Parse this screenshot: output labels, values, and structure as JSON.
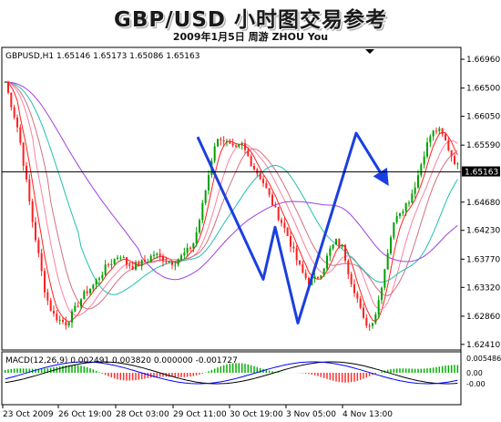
{
  "title": "GBP/USD 小时图交易参考",
  "subtitle": "2009年1月5日   周游 ZHOU You",
  "chart_data": {
    "type": "candlestick",
    "symbol_line": "GBPUSD,H1  1.65146 1.65173 1.65086 1.65163",
    "current_price": 1.65163,
    "current_price_label": "1.65163",
    "y_ticks": [
      1.6696,
      1.665,
      1.6605,
      1.6559,
      1.6468,
      1.6423,
      1.6377,
      1.6332,
      1.6286,
      1.6241
    ],
    "y_tick_labels": [
      "1.66960",
      "1.66500",
      "1.66050",
      "1.65590",
      "1.64680",
      "1.64230",
      "1.63770",
      "1.63320",
      "1.62860",
      "1.62410"
    ],
    "ylim": [
      1.6235,
      1.6712
    ],
    "x_labels": [
      "23 Oct 2009",
      "26 Oct 19:00",
      "28 Oct 03:00",
      "29 Oct 11:00",
      "30 Oct 19:00",
      "3 Nov 05:00",
      "4 Nov 13:00"
    ],
    "price_path": [
      1.666,
      1.662,
      1.658,
      1.651,
      1.644,
      1.638,
      1.632,
      1.629,
      1.628,
      1.6275,
      1.629,
      1.631,
      1.6325,
      1.6335,
      1.635,
      1.6365,
      1.6375,
      1.6385,
      1.637,
      1.6365,
      1.637,
      1.6375,
      1.6385,
      1.638,
      1.6375,
      1.6372,
      1.638,
      1.639,
      1.6405,
      1.645,
      1.6505,
      1.656,
      1.6572,
      1.656,
      1.655,
      1.656,
      1.654,
      1.652,
      1.6505,
      1.648,
      1.6455,
      1.6435,
      1.641,
      1.638,
      1.6355,
      1.634,
      1.6345,
      1.636,
      1.639,
      1.6405,
      1.6395,
      1.635,
      1.632,
      1.628,
      1.627,
      1.6295,
      1.635,
      1.641,
      1.645,
      1.646,
      1.6475,
      1.6505,
      1.6545,
      1.6575,
      1.6585,
      1.657,
      1.6545,
      1.6525
    ],
    "wave_annotation": {
      "points": [
        [
          1.6572,
          1.6575
        ],
        [
          1.6345,
          1.6345
        ],
        [
          1.6428,
          1.6428
        ],
        [
          1.6275,
          1.6275
        ],
        [
          1.6578,
          1.6578
        ],
        [
          1.6505,
          1.6505
        ]
      ],
      "price_values": [
        1.6572,
        1.6345,
        1.6428,
        1.6275,
        1.6578,
        1.6505
      ],
      "color": "#1a3fe0"
    },
    "ma_colors": [
      "#ff2020",
      "#ff80a0",
      "#d07080",
      "#20c0b0",
      "#a040e0"
    ],
    "macd": {
      "label": "MACD(12,26,9) 0.002491 0.003820 0.000000 -0.001727",
      "y_tick_labels": [
        "0.005486",
        "0.00",
        "-0.00"
      ],
      "hist_positive_color": "#00b000",
      "hist_negative_color": "#ff3030",
      "signal_color": "#000000",
      "macd_color": "#0000ff"
    }
  }
}
